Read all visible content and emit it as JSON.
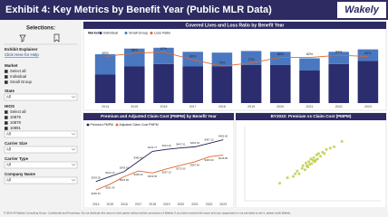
{
  "header": {
    "title": "Exhibit 4: Key Metrics by Benefit Year (Public MLR Data)",
    "logo": "Wakely"
  },
  "sidebar": {
    "heading": "Selections:",
    "explainer": "Exhibit Explainer",
    "help": "Click Here for Help",
    "filters": [
      {
        "label": "Market",
        "options": [
          "Select all",
          "Individual",
          "Small Group"
        ]
      },
      {
        "label": "State",
        "value": "All"
      },
      {
        "label": "HIOS",
        "options": [
          "Select all",
          "10879",
          "10878",
          "10891"
        ],
        "value": "All"
      },
      {
        "label": "Carrier Size",
        "value": "All"
      },
      {
        "label": "Carrier Type",
        "value": "All"
      },
      {
        "label": "Company Name",
        "value": "All"
      }
    ]
  },
  "chart_data": [
    {
      "type": "combo",
      "title": "Covered Lives and Loss Ratio by Benefit Year",
      "legend_title": "Market",
      "categories": [
        "2014",
        "2015",
        "2016",
        "2017",
        "2018",
        "2019",
        "2020",
        "2021",
        "2022",
        "2023"
      ],
      "series": [
        {
          "name": "Individual",
          "color": "#2b2d6e",
          "values": [
            35,
            45,
            48,
            45,
            45,
            47,
            47,
            40,
            48,
            52
          ]
        },
        {
          "name": "Small Group",
          "color": "#4a78c0",
          "values": [
            25,
            22,
            20,
            18,
            17,
            17,
            16,
            15,
            15,
            14
          ]
        },
        {
          "name": "Loss Ratio",
          "color": "#e0662a",
          "axis": "y2",
          "values": [
            83,
            86,
            87,
            80,
            74,
            77,
            82,
            82,
            84,
            83
          ],
          "value_labels": [
            "83%",
            "86%",
            "87%",
            "80%",
            "74%",
            "77%",
            "82%",
            "82%",
            "84%",
            "83%"
          ]
        }
      ],
      "ylim": [
        0,
        80
      ],
      "y2lim": [
        40,
        100
      ]
    },
    {
      "type": "line",
      "title": "Premium and Adjusted Claim Cost (PMPM) by Benefit Year",
      "categories": [
        "2014",
        "2015",
        "2016",
        "2017",
        "2018",
        "2019",
        "2020",
        "2021",
        "2022",
        "2023"
      ],
      "series": [
        {
          "name": "Premium PMPM",
          "color": "#1f2250",
          "values": [
            303.05,
            324.1,
            345.62,
            389.4,
            432.77,
            441.2,
            447.51,
            452.29,
            467.15,
            482.6
          ],
          "value_labels": [
            "$303.05",
            "$324.10",
            "$345.62",
            "$389.40",
            "$432.77",
            "$441.20",
            "$447.51",
            "$452.29",
            "$467.15",
            "$482.60"
          ]
        },
        {
          "name": "Adjusted Claim Cost PMPM",
          "color": "#e0662a",
          "values": [
            266.3,
            291.4,
            323.8,
            348.2,
            339.5,
            357.1,
            372.6,
            387.9,
            409.3,
            416.8
          ],
          "value_labels": [
            "$266.30",
            "$291.40",
            "$323.80",
            "$348.20",
            "$339.50",
            "$357.10",
            "$372.60",
            "$387.90",
            "$409.30",
            "$416.80"
          ]
        }
      ],
      "ylim": [
        220,
        520
      ]
    },
    {
      "type": "scatter",
      "title": "BY2022: Premium vs Claim Cost (PMPM)",
      "color": "#c5d52c",
      "x": [
        420,
        450,
        470,
        480,
        495,
        500,
        510,
        515,
        520,
        530,
        535,
        540,
        550,
        555,
        560,
        570,
        575,
        580,
        590,
        600,
        610,
        620,
        640,
        660,
        700,
        380,
        460,
        525,
        545,
        565
      ],
      "y": [
        470,
        480,
        520,
        500,
        540,
        560,
        530,
        580,
        560,
        590,
        570,
        610,
        600,
        620,
        590,
        640,
        610,
        650,
        630,
        660,
        650,
        680,
        690,
        700,
        740,
        430,
        500,
        550,
        575,
        600
      ],
      "xlim": [
        200,
        900
      ],
      "ylim": [
        300,
        850
      ]
    }
  ],
  "footer": "© 2014-24 Wakely Consulting Group. Confidential and Proprietary. Do not distribute this report to third parties without written permission of Wakely. If you have received this report and your organization is not permitted to see it, please notify Wakely."
}
